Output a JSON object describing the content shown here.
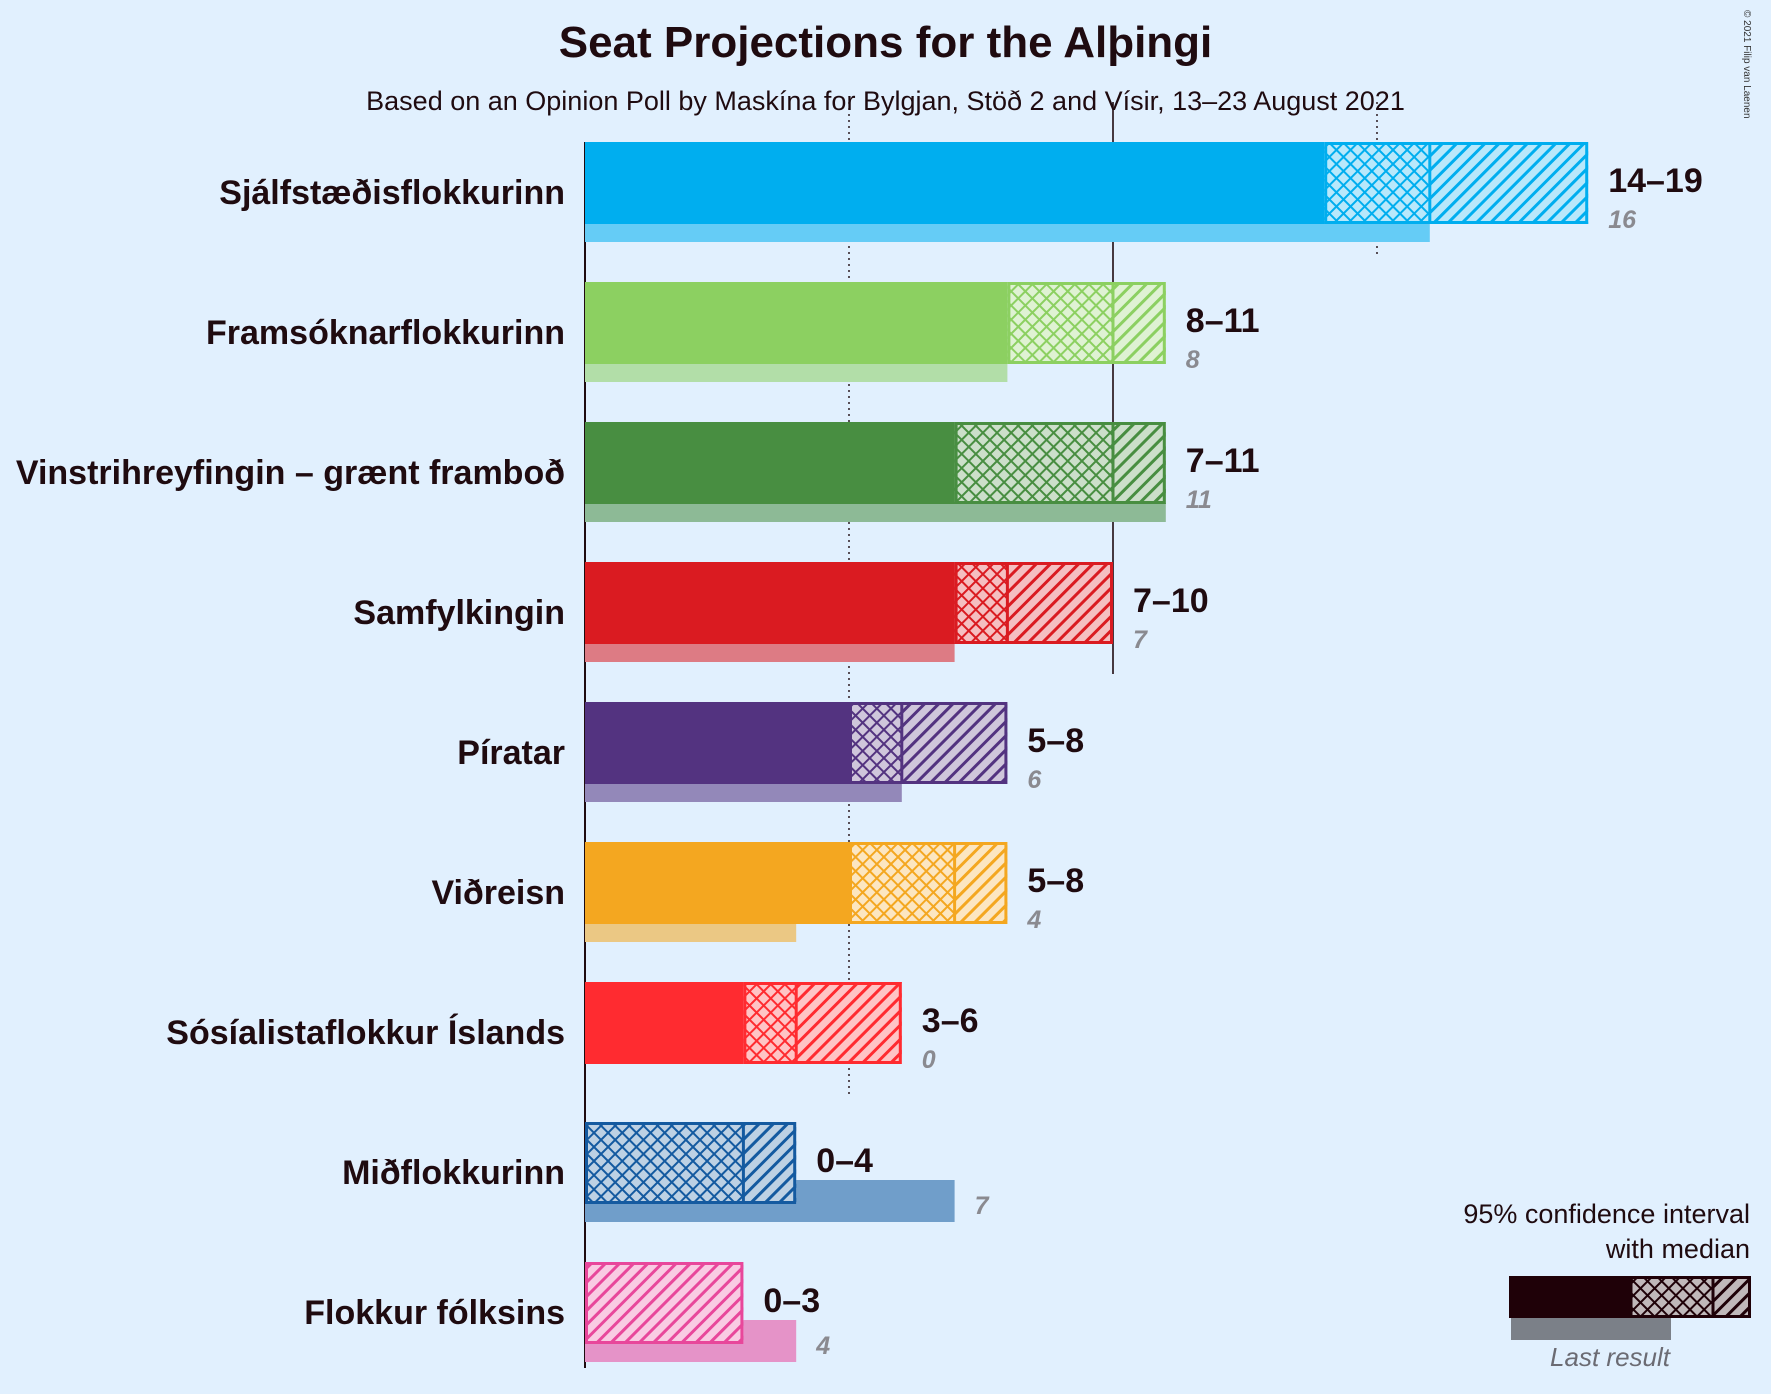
{
  "title": "Seat Projections for the Alþingi",
  "subtitle": "Based on an Opinion Poll by Maskína for Bylgjan, Stöð 2 and Vísir, 13–23 August 2021",
  "copyright": "© 2021 Filip van Laenen",
  "chart_data": {
    "type": "bar",
    "orientation": "horizontal",
    "x_unit": "seats",
    "gridlines": [
      5,
      10,
      15
    ],
    "majority_line": 10,
    "parties": [
      {
        "name": "Sjálfstæðisflokkurinn",
        "color": "#00aeef",
        "low": 14,
        "median": 16,
        "high": 19,
        "range_label": "14–19",
        "last_result": 16,
        "last_result_label": "16"
      },
      {
        "name": "Framsóknarflokkurinn",
        "color": "#8cd061",
        "low": 8,
        "median": 10,
        "high": 11,
        "range_label": "8–11",
        "last_result": 8,
        "last_result_label": "8"
      },
      {
        "name": "Vinstrihreyfingin – grænt framboð",
        "color": "#488e41",
        "low": 7,
        "median": 10,
        "high": 11,
        "range_label": "7–11",
        "last_result": 11,
        "last_result_label": "11"
      },
      {
        "name": "Samfylkingin",
        "color": "#da1b21",
        "low": 7,
        "median": 8,
        "high": 10,
        "range_label": "7–10",
        "last_result": 7,
        "last_result_label": "7"
      },
      {
        "name": "Píratar",
        "color": "#533380",
        "low": 5,
        "median": 6,
        "high": 8,
        "range_label": "5–8",
        "last_result": 6,
        "last_result_label": "6"
      },
      {
        "name": "Viðreisn",
        "color": "#f4a720",
        "low": 5,
        "median": 7,
        "high": 8,
        "range_label": "5–8",
        "last_result": 4,
        "last_result_label": "4"
      },
      {
        "name": "Sósíalistaflokkur Íslands",
        "color": "#ff2b30",
        "low": 3,
        "median": 4,
        "high": 6,
        "range_label": "3–6",
        "last_result": 0,
        "last_result_label": "0"
      },
      {
        "name": "Miðflokkurinn",
        "color": "#145aa0",
        "low": 0,
        "median": 3,
        "high": 4,
        "range_label": "0–4",
        "last_result": 7,
        "last_result_label": "7"
      },
      {
        "name": "Flokkur fólksins",
        "color": "#e8479b",
        "low": 0,
        "median": 0,
        "high": 3,
        "range_label": "0–3",
        "last_result": 4,
        "last_result_label": "4"
      }
    ],
    "legend": {
      "title_line1": "95% confidence interval",
      "title_line2": "with median",
      "last_result_label": "Last result",
      "color": "#1f0108",
      "placement": "bottom-right"
    }
  }
}
